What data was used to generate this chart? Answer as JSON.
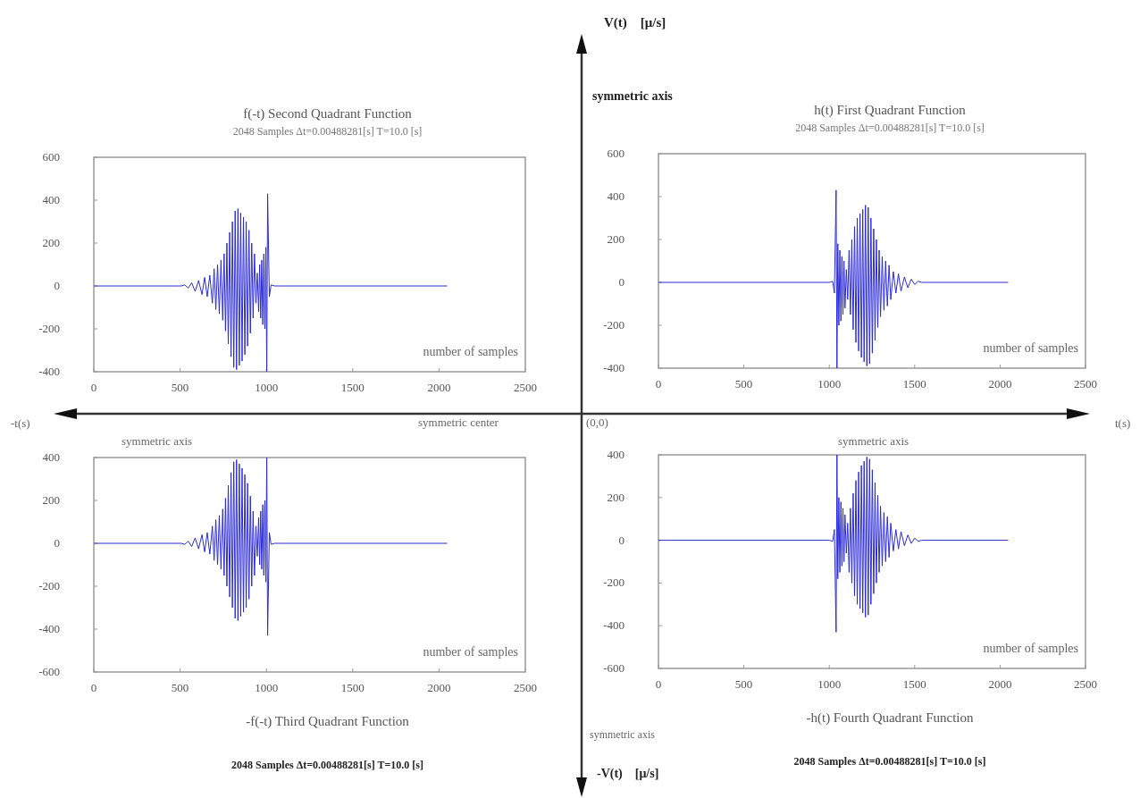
{
  "chart_data": [
    {
      "type": "line",
      "title": "f(-t) Second Quadrant Function",
      "subtitle": "2048 Samples Δt=0.00488281[s] T=10.0 [s]",
      "xlabel": "number of samples",
      "xlim": [
        0,
        2500
      ],
      "xticks": [
        0,
        500,
        1000,
        1500,
        2000,
        2500
      ],
      "ylim": [
        -400,
        600
      ],
      "yticks": [
        -400,
        -200,
        0,
        200,
        400,
        600
      ],
      "x": [
        0,
        507,
        527,
        547,
        567,
        587,
        607,
        627,
        642,
        657,
        672,
        687,
        697,
        707,
        717,
        727,
        737,
        747,
        755,
        763,
        771,
        779,
        787,
        795,
        803,
        811,
        819,
        827,
        835,
        843,
        851,
        859,
        867,
        875,
        883,
        891,
        899,
        907,
        915,
        923,
        931,
        939,
        947,
        955,
        961,
        967,
        973,
        979,
        985,
        991,
        997,
        1002,
        1007,
        1017,
        1027,
        1047,
        2047
      ],
      "series": [
        {
          "color": "#2a2ad8",
          "values": [
            0,
            0,
            5,
            -10,
            15,
            -25,
            25,
            -40,
            40,
            -50,
            50,
            -80,
            80,
            -110,
            100,
            -130,
            120,
            -160,
            150,
            -210,
            200,
            -270,
            250,
            -330,
            300,
            -380,
            350,
            -390,
            360,
            -370,
            340,
            -350,
            320,
            -320,
            300,
            -280,
            260,
            -220,
            200,
            -150,
            150,
            -80,
            60,
            -120,
            100,
            -150,
            120,
            -180,
            150,
            -200,
            180,
            -400,
            430,
            -50,
            5,
            0,
            0
          ]
        }
      ]
    },
    {
      "type": "line",
      "title": "h(t) First Quadrant Function",
      "subtitle": "2048 Samples Δt=0.00488281[s] T=10.0 [s]",
      "xlabel": "number of samples",
      "xlim": [
        0,
        2500
      ],
      "xticks": [
        0,
        500,
        1000,
        1500,
        2000,
        2500
      ],
      "ylim": [
        -400,
        600
      ],
      "yticks": [
        -400,
        -200,
        0,
        200,
        400,
        600
      ],
      "x": [
        0,
        1000,
        1020,
        1030,
        1040,
        1045,
        1050,
        1056,
        1062,
        1068,
        1074,
        1080,
        1086,
        1092,
        1100,
        1108,
        1116,
        1124,
        1132,
        1140,
        1148,
        1156,
        1164,
        1172,
        1180,
        1188,
        1196,
        1204,
        1212,
        1220,
        1228,
        1236,
        1244,
        1252,
        1260,
        1268,
        1276,
        1284,
        1292,
        1300,
        1310,
        1320,
        1330,
        1340,
        1350,
        1360,
        1375,
        1390,
        1405,
        1420,
        1440,
        1460,
        1480,
        1500,
        1520,
        1540,
        2047
      ],
      "series": [
        {
          "color": "#2a2ad8",
          "values": [
            0,
            0,
            5,
            -50,
            430,
            -400,
            180,
            -200,
            150,
            -180,
            120,
            -150,
            100,
            -120,
            60,
            -80,
            150,
            -150,
            200,
            -220,
            260,
            -280,
            300,
            -320,
            320,
            -350,
            340,
            -370,
            360,
            -390,
            350,
            -380,
            300,
            -330,
            250,
            -270,
            200,
            -210,
            150,
            -160,
            120,
            -130,
            100,
            -110,
            80,
            -80,
            50,
            -50,
            40,
            -40,
            25,
            -25,
            15,
            -10,
            5,
            0,
            0
          ]
        }
      ]
    },
    {
      "type": "line",
      "title": "-f(-t) Third Quadrant Function",
      "subtitle": "2048 Samples Δt=0.00488281[s] T=10.0 [s]",
      "xlabel": "number of samples",
      "xlim": [
        0,
        2500
      ],
      "xticks": [
        0,
        500,
        1000,
        1500,
        2000,
        2500
      ],
      "ylim": [
        -600,
        400
      ],
      "yticks": [
        -600,
        -400,
        -200,
        0,
        200,
        400
      ],
      "x": [
        0,
        507,
        527,
        547,
        567,
        587,
        607,
        627,
        642,
        657,
        672,
        687,
        697,
        707,
        717,
        727,
        737,
        747,
        755,
        763,
        771,
        779,
        787,
        795,
        803,
        811,
        819,
        827,
        835,
        843,
        851,
        859,
        867,
        875,
        883,
        891,
        899,
        907,
        915,
        923,
        931,
        939,
        947,
        955,
        961,
        967,
        973,
        979,
        985,
        991,
        997,
        1002,
        1007,
        1017,
        1027,
        1047,
        2047
      ],
      "series": [
        {
          "color": "#2a2ad8",
          "values": [
            0,
            0,
            -5,
            10,
            -15,
            25,
            -25,
            40,
            -40,
            50,
            -50,
            80,
            -80,
            110,
            -100,
            130,
            -120,
            160,
            -150,
            210,
            -200,
            270,
            -250,
            330,
            -300,
            380,
            -350,
            390,
            -360,
            370,
            -340,
            350,
            -320,
            320,
            -300,
            280,
            -260,
            220,
            -200,
            150,
            -150,
            80,
            -60,
            120,
            -100,
            150,
            -120,
            180,
            -150,
            200,
            -180,
            400,
            -430,
            50,
            -5,
            0,
            0
          ]
        }
      ]
    },
    {
      "type": "line",
      "title": "-h(t) Fourth Quadrant Function",
      "subtitle": "2048 Samples Δt=0.00488281[s] T=10.0 [s]",
      "xlabel": "number of samples",
      "xlim": [
        0,
        2500
      ],
      "xticks": [
        0,
        500,
        1000,
        1500,
        2000,
        2500
      ],
      "ylim": [
        -600,
        400
      ],
      "yticks": [
        -600,
        -400,
        -200,
        0,
        200,
        400
      ],
      "x": [
        0,
        1000,
        1020,
        1030,
        1040,
        1045,
        1050,
        1056,
        1062,
        1068,
        1074,
        1080,
        1086,
        1092,
        1100,
        1108,
        1116,
        1124,
        1132,
        1140,
        1148,
        1156,
        1164,
        1172,
        1180,
        1188,
        1196,
        1204,
        1212,
        1220,
        1228,
        1236,
        1244,
        1252,
        1260,
        1268,
        1276,
        1284,
        1292,
        1300,
        1310,
        1320,
        1330,
        1340,
        1350,
        1360,
        1375,
        1390,
        1405,
        1420,
        1440,
        1460,
        1480,
        1500,
        1520,
        1540,
        2047
      ],
      "series": [
        {
          "color": "#2a2ad8",
          "values": [
            0,
            0,
            -5,
            50,
            -430,
            400,
            -180,
            200,
            -150,
            180,
            -120,
            150,
            -100,
            120,
            -60,
            80,
            -150,
            150,
            -200,
            220,
            -260,
            280,
            -300,
            320,
            -320,
            350,
            -340,
            370,
            -360,
            390,
            -350,
            380,
            -300,
            330,
            -250,
            270,
            -200,
            210,
            -150,
            160,
            -120,
            130,
            -100,
            110,
            -80,
            80,
            -50,
            50,
            -40,
            40,
            -25,
            25,
            -15,
            10,
            -5,
            0,
            0
          ]
        }
      ]
    },
    {
      "type": "other",
      "annotations": [
        "V(t)　[μ/s]",
        "symmetric axis",
        "-t(s)",
        "symmetric center",
        "(0,0)",
        "t(s)",
        "symmetric axis",
        "symmetric axis",
        "symmetric axis",
        "-V(t)　[μ/s]"
      ]
    }
  ]
}
